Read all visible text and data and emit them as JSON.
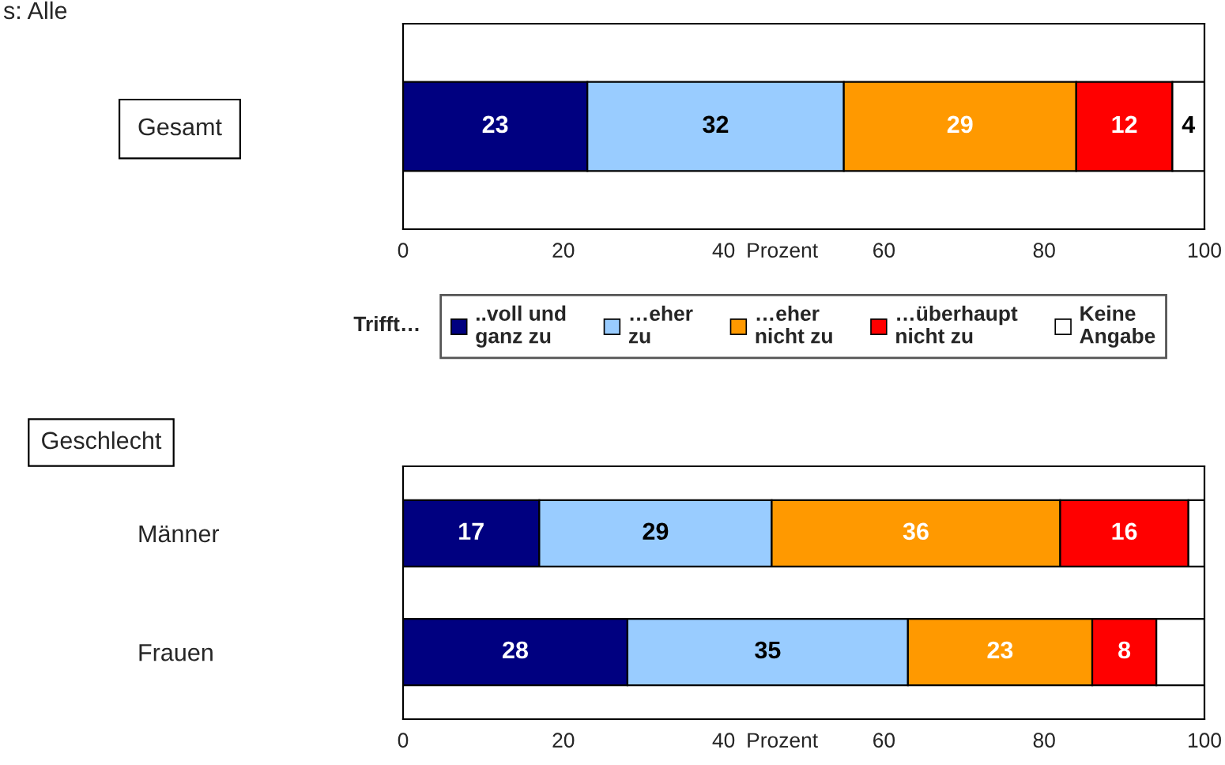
{
  "chart_data": [
    {
      "type": "bar",
      "orientation": "horizontal",
      "stacked": true,
      "categories": [
        "Gesamt"
      ],
      "series": [
        {
          "name": "..voll und\nganz zu",
          "color": "#000080",
          "values": [
            23
          ],
          "value_labels": [
            "23"
          ]
        },
        {
          "name": "…eher\nzu",
          "color": "#99ccff",
          "values": [
            32
          ],
          "value_labels": [
            "32"
          ]
        },
        {
          "name": "…eher\nnicht zu",
          "color": "#ff9900",
          "values": [
            29
          ],
          "value_labels": [
            "29"
          ]
        },
        {
          "name": "…überhaupt\nnicht zu",
          "color": "#ff0000",
          "values": [
            12
          ],
          "value_labels": [
            "12"
          ]
        },
        {
          "name": "Keine\nAngabe",
          "color": "#ffffff",
          "values": [
            4
          ],
          "value_labels": [
            "4"
          ]
        }
      ],
      "xlim": [
        0,
        100
      ],
      "xticks": [
        0,
        20,
        40,
        60,
        80,
        100
      ],
      "xlabel": "Prozent",
      "legend": "bottom",
      "legend_title": "Trifft…",
      "annotations": [
        "s: Alle"
      ]
    },
    {
      "type": "bar",
      "orientation": "horizontal",
      "stacked": true,
      "title": "Geschlecht",
      "categories": [
        "Männer",
        "Frauen"
      ],
      "series": [
        {
          "color": "#000080",
          "values": [
            17,
            28
          ],
          "value_labels": [
            "17",
            "28"
          ]
        },
        {
          "color": "#99ccff",
          "values": [
            29,
            35
          ],
          "value_labels": [
            "29",
            "35"
          ]
        },
        {
          "color": "#ff9900",
          "values": [
            36,
            23
          ],
          "value_labels": [
            "36",
            "23"
          ]
        },
        {
          "color": "#ff0000",
          "values": [
            16,
            8
          ],
          "value_labels": [
            "16",
            "8"
          ]
        },
        {
          "color": "#ffffff",
          "values": [
            2,
            6
          ],
          "value_labels": [
            null,
            null
          ]
        }
      ],
      "xlim": [
        0,
        100
      ],
      "xticks": [
        0,
        20,
        40,
        60,
        80,
        100
      ],
      "xlabel": "Prozent"
    }
  ]
}
